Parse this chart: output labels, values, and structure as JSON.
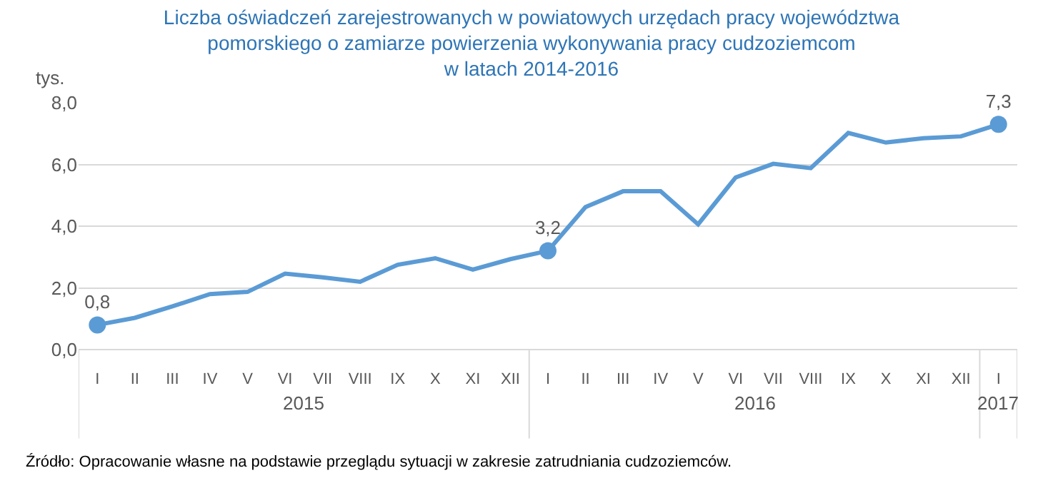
{
  "chart_data": {
    "type": "line",
    "title": "Liczba oświadczeń zarejestrowanych w powiatowych urzędach pracy województwa\npomorskiego o zamiarze powierzenia wykonywania pracy cudzoziemcom\nw latach 2014-2016",
    "ylabel": "tys.",
    "categories": [
      "I",
      "II",
      "III",
      "IV",
      "V",
      "VI",
      "VII",
      "VIII",
      "IX",
      "X",
      "XI",
      "XII",
      "I",
      "II",
      "III",
      "IV",
      "V",
      "VI",
      "VII",
      "VIII",
      "IX",
      "X",
      "XI",
      "XII",
      "I"
    ],
    "series": [
      {
        "color": "#5b9bd5",
        "values": [
          0.8,
          1.03,
          1.4,
          1.8,
          1.87,
          2.46,
          2.34,
          2.2,
          2.75,
          2.96,
          2.59,
          2.93,
          3.2,
          4.62,
          5.13,
          5.13,
          4.06,
          5.58,
          6.02,
          5.88,
          7.02,
          6.71,
          6.85,
          6.91,
          7.3
        ],
        "value_labels": [
          "0,8",
          null,
          null,
          null,
          null,
          null,
          null,
          null,
          null,
          null,
          null,
          null,
          "3,2",
          null,
          null,
          null,
          null,
          null,
          null,
          null,
          null,
          null,
          null,
          null,
          "7,3"
        ]
      }
    ],
    "ylim": [
      0,
      8
    ],
    "yticks": [
      {
        "value": 0,
        "label": "0,0"
      },
      {
        "value": 2,
        "label": "2,0"
      },
      {
        "value": 4,
        "label": "4,0"
      },
      {
        "value": 6,
        "label": "6,0"
      },
      {
        "value": 8,
        "label": "8,0"
      }
    ],
    "annotations": [
      "2015",
      "2016",
      "2017",
      "Źródło: Opracowanie własne na podstawie przeglądu sytuacji w zakresie zatrudniania cudzoziemców."
    ],
    "grid": "y",
    "line_style": "solid"
  }
}
